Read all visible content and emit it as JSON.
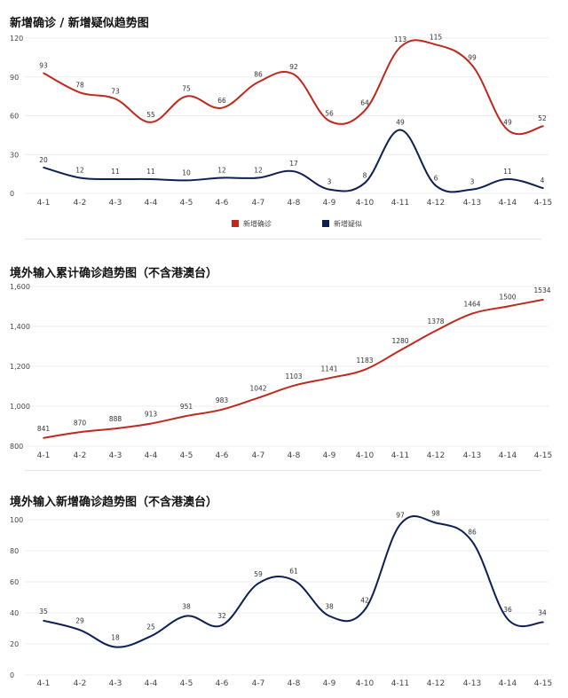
{
  "chart_data": [
    {
      "type": "line",
      "title": "新增确诊 / 新增疑似趋势图",
      "categories": [
        "4-1",
        "4-2",
        "4-3",
        "4-4",
        "4-5",
        "4-6",
        "4-7",
        "4-8",
        "4-9",
        "4-10",
        "4-11",
        "4-12",
        "4-13",
        "4-14",
        "4-15"
      ],
      "ylim": [
        0,
        120
      ],
      "yticks": [
        0,
        30,
        60,
        90,
        120
      ],
      "grid": true,
      "legend": "bottom-center",
      "series": [
        {
          "name": "新增确诊",
          "color": "#c0281c",
          "values": [
            93,
            78,
            73,
            55,
            75,
            66,
            86,
            92,
            56,
            64,
            113,
            115,
            99,
            49,
            52
          ]
        },
        {
          "name": "新增疑似",
          "color": "#0d1f54",
          "values": [
            20,
            12,
            11,
            11,
            10,
            12,
            12,
            17,
            3,
            8,
            49,
            6,
            3,
            11,
            4
          ]
        }
      ]
    },
    {
      "type": "line",
      "title": "境外输入累计确诊趋势图（不含港澳台）",
      "categories": [
        "4-1",
        "4-2",
        "4-3",
        "4-4",
        "4-5",
        "4-6",
        "4-7",
        "4-8",
        "4-9",
        "4-10",
        "4-11",
        "4-12",
        "4-13",
        "4-14",
        "4-15"
      ],
      "ylim": [
        800,
        1600
      ],
      "yticks": [
        800,
        1000,
        1200,
        1400,
        1600
      ],
      "ytick_labels": [
        "800",
        "1,000",
        "1,200",
        "1,400",
        "1,600"
      ],
      "grid": true,
      "series": [
        {
          "color": "#c0281c",
          "values": [
            841,
            870,
            888,
            913,
            951,
            983,
            1042,
            1103,
            1141,
            1183,
            1280,
            1378,
            1464,
            1500,
            1534
          ]
        }
      ]
    },
    {
      "type": "line",
      "title": "境外输入新增确诊趋势图（不含港澳台）",
      "categories": [
        "4-1",
        "4-2",
        "4-3",
        "4-4",
        "4-5",
        "4-6",
        "4-7",
        "4-8",
        "4-9",
        "4-10",
        "4-11",
        "4-12",
        "4-13",
        "4-14",
        "4-15"
      ],
      "ylim": [
        0,
        100
      ],
      "yticks": [
        0,
        20,
        40,
        60,
        80,
        100
      ],
      "grid": true,
      "series": [
        {
          "color": "#0d1f54",
          "values": [
            35,
            29,
            18,
            25,
            38,
            32,
            59,
            61,
            38,
            42,
            97,
            98,
            86,
            36,
            34
          ]
        }
      ]
    }
  ]
}
